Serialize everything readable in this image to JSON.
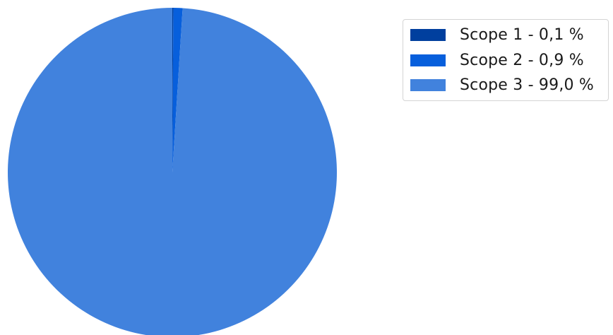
{
  "chart_data": {
    "type": "pie",
    "title": "",
    "start_angle_deg": 90,
    "direction": "clockwise",
    "legend_position": "top-right",
    "slices": [
      {
        "label": "Scope 1 - 0,1 %",
        "value": 0.1,
        "color": "#003f9e"
      },
      {
        "label": "Scope 2 - 0,9 %",
        "value": 0.9,
        "color": "#075fdc"
      },
      {
        "label": "Scope 3 - 99,0 %",
        "value": 99.0,
        "color": "#4182dd"
      }
    ]
  }
}
